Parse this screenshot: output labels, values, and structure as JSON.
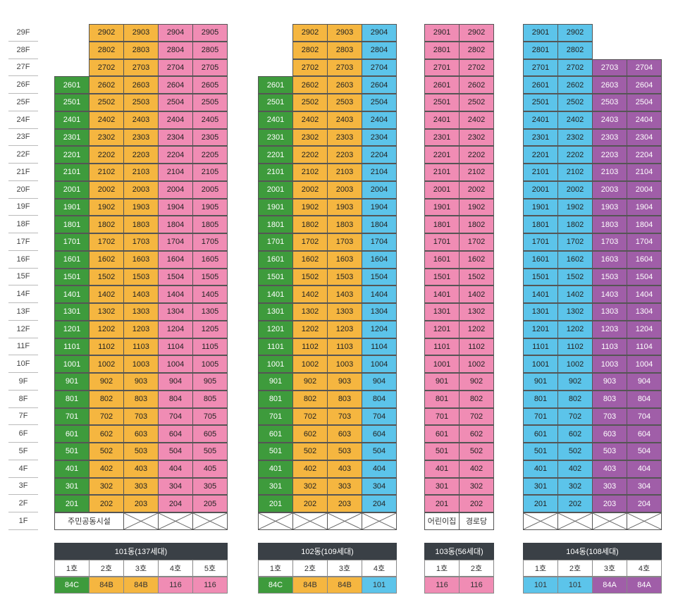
{
  "colors": {
    "green": "#3e9b3c",
    "orange": "#f5b640",
    "pink": "#f08cb4",
    "blue": "#5cc4ea",
    "purple": "#a05ea8",
    "legend_header": "#3a4046"
  },
  "floors": [
    "29F",
    "28F",
    "27F",
    "26F",
    "25F",
    "24F",
    "23F",
    "22F",
    "21F",
    "20F",
    "19F",
    "18F",
    "17F",
    "16F",
    "15F",
    "14F",
    "13F",
    "12F",
    "11F",
    "10F",
    "9F",
    "8F",
    "7F",
    "6F",
    "5F",
    "4F",
    "3F",
    "2F",
    "1F"
  ],
  "buildings": [
    {
      "id": "101",
      "title": "101동(137세대)",
      "lines": [
        {
          "label": "1호",
          "suffix": "01",
          "type": "84C",
          "color": "green",
          "top_floor": 26
        },
        {
          "label": "2호",
          "suffix": "02",
          "type": "84B",
          "color": "orange",
          "top_floor": 29
        },
        {
          "label": "3호",
          "suffix": "03",
          "type": "84B",
          "color": "orange",
          "top_floor": 29
        },
        {
          "label": "4호",
          "suffix": "04",
          "type": "116",
          "color": "pink",
          "top_floor": 29
        },
        {
          "label": "5호",
          "suffix": "05",
          "type": "116",
          "color": "pink",
          "top_floor": 29
        }
      ],
      "ground": [
        {
          "kind": "text",
          "text": "주민공동시설",
          "span": 2
        },
        {
          "kind": "x",
          "span": 1
        },
        {
          "kind": "x",
          "span": 1
        },
        {
          "kind": "x",
          "span": 1
        }
      ]
    },
    {
      "id": "102",
      "title": "102동(109세대)",
      "lines": [
        {
          "label": "1호",
          "suffix": "01",
          "type": "84C",
          "color": "green",
          "top_floor": 26
        },
        {
          "label": "2호",
          "suffix": "02",
          "type": "84B",
          "color": "orange",
          "top_floor": 29
        },
        {
          "label": "3호",
          "suffix": "03",
          "type": "84B",
          "color": "orange",
          "top_floor": 29
        },
        {
          "label": "4호",
          "suffix": "04",
          "type": "101",
          "color": "blue",
          "top_floor": 29
        }
      ],
      "ground": [
        {
          "kind": "x",
          "span": 1
        },
        {
          "kind": "x",
          "span": 1
        },
        {
          "kind": "x",
          "span": 1
        },
        {
          "kind": "x",
          "span": 1
        }
      ]
    },
    {
      "id": "103",
      "title": "103동(56세대)",
      "lines": [
        {
          "label": "1호",
          "suffix": "01",
          "type": "116",
          "color": "pink",
          "top_floor": 29
        },
        {
          "label": "2호",
          "suffix": "02",
          "type": "116",
          "color": "pink",
          "top_floor": 29
        }
      ],
      "ground": [
        {
          "kind": "text",
          "text": "어린이집",
          "span": 1
        },
        {
          "kind": "text",
          "text": "경로당",
          "span": 1
        }
      ]
    },
    {
      "id": "104",
      "title": "104동(108세대)",
      "lines": [
        {
          "label": "1호",
          "suffix": "01",
          "type": "101",
          "color": "blue",
          "top_floor": 29
        },
        {
          "label": "2호",
          "suffix": "02",
          "type": "101",
          "color": "blue",
          "top_floor": 29
        },
        {
          "label": "3호",
          "suffix": "03",
          "type": "84A",
          "color": "purple",
          "top_floor": 27
        },
        {
          "label": "4호",
          "suffix": "04",
          "type": "84A",
          "color": "purple",
          "top_floor": 27
        }
      ],
      "ground": [
        {
          "kind": "x",
          "span": 1
        },
        {
          "kind": "x",
          "span": 1
        },
        {
          "kind": "x",
          "span": 1
        },
        {
          "kind": "x",
          "span": 1
        }
      ]
    }
  ]
}
